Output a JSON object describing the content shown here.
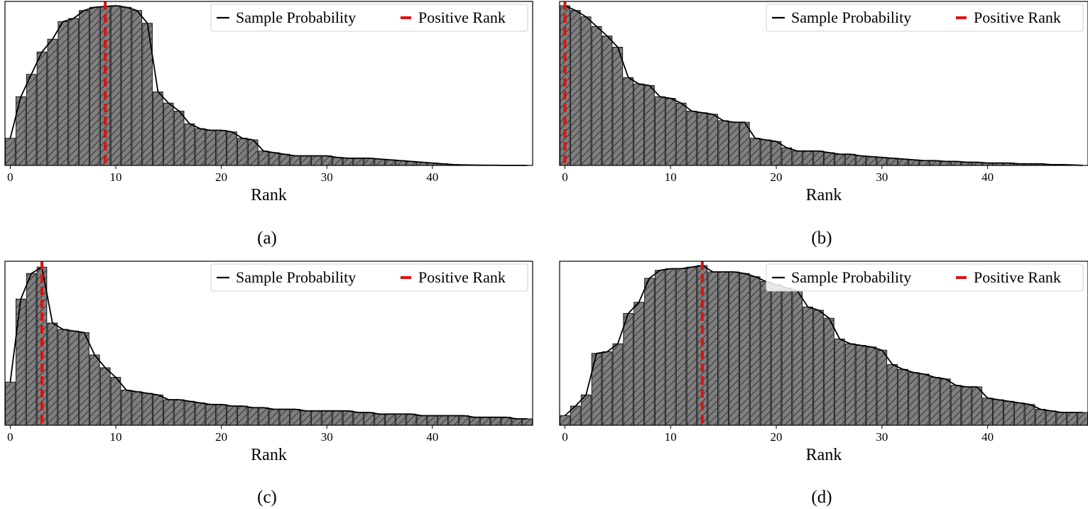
{
  "colors": {
    "bar_fill": "#7f7f7f",
    "bar_edge": "#1a1a1a",
    "hatch": "#3a3a3a",
    "line": "#000000",
    "positive_rank": "#e01010"
  },
  "chart_data": [
    {
      "type": "bar",
      "caption": "(a)",
      "xlabel": "Rank",
      "ylabel": "",
      "xlim": [
        0,
        49
      ],
      "ylim": [
        0,
        1
      ],
      "xticks": [
        0,
        10,
        20,
        30,
        40
      ],
      "grid": false,
      "legend_position": "top-right",
      "legend": [
        "Sample Probability",
        "Positive Rank"
      ],
      "positive_rank": 9,
      "series": [
        {
          "x": [
            0,
            1,
            2,
            3,
            4,
            5,
            6,
            7,
            8,
            9,
            10,
            11,
            12,
            13,
            14,
            15,
            16,
            17,
            18,
            19,
            20,
            21,
            22,
            23,
            24,
            25,
            26,
            27,
            28,
            29,
            30,
            31,
            32,
            33,
            34,
            35,
            36,
            37,
            38,
            39,
            40,
            41,
            42,
            43,
            44,
            45,
            46,
            47,
            48,
            49
          ],
          "values": [
            0.17,
            0.43,
            0.57,
            0.71,
            0.79,
            0.9,
            0.92,
            0.97,
            0.99,
            0.995,
            1.0,
            0.99,
            0.97,
            0.89,
            0.46,
            0.39,
            0.34,
            0.26,
            0.23,
            0.22,
            0.22,
            0.21,
            0.17,
            0.16,
            0.09,
            0.08,
            0.07,
            0.06,
            0.06,
            0.06,
            0.06,
            0.05,
            0.045,
            0.045,
            0.045,
            0.04,
            0.035,
            0.03,
            0.025,
            0.02,
            0.015,
            0.01,
            0.005,
            0.003,
            0.002,
            0.001,
            0.001,
            0.0,
            0.0,
            0.0
          ]
        }
      ]
    },
    {
      "type": "bar",
      "caption": "(b)",
      "xlabel": "Rank",
      "ylabel": "",
      "xlim": [
        0,
        49
      ],
      "ylim": [
        0,
        1
      ],
      "xticks": [
        0,
        10,
        20,
        30,
        40
      ],
      "grid": false,
      "legend_position": "top-right",
      "legend": [
        "Sample Probability",
        "Positive Rank"
      ],
      "positive_rank": 0,
      "series": [
        {
          "x": [
            0,
            1,
            2,
            3,
            4,
            5,
            6,
            7,
            8,
            9,
            10,
            11,
            12,
            13,
            14,
            15,
            16,
            17,
            18,
            19,
            20,
            21,
            22,
            23,
            24,
            25,
            26,
            27,
            28,
            29,
            30,
            31,
            32,
            33,
            34,
            35,
            36,
            37,
            38,
            39,
            40,
            41,
            42,
            43,
            44,
            45,
            46,
            47,
            48,
            49
          ],
          "values": [
            1.0,
            0.97,
            0.93,
            0.87,
            0.81,
            0.74,
            0.55,
            0.51,
            0.5,
            0.43,
            0.42,
            0.39,
            0.34,
            0.33,
            0.32,
            0.28,
            0.27,
            0.27,
            0.17,
            0.16,
            0.15,
            0.11,
            0.09,
            0.09,
            0.09,
            0.08,
            0.07,
            0.07,
            0.06,
            0.055,
            0.05,
            0.045,
            0.04,
            0.035,
            0.03,
            0.03,
            0.025,
            0.025,
            0.02,
            0.02,
            0.015,
            0.015,
            0.015,
            0.01,
            0.01,
            0.01,
            0.005,
            0.005,
            0.003,
            0.0
          ]
        }
      ]
    },
    {
      "type": "bar",
      "caption": "(c)",
      "xlabel": "Rank",
      "ylabel": "",
      "xlim": [
        0,
        49
      ],
      "ylim": [
        0,
        1
      ],
      "xticks": [
        0,
        10,
        20,
        30,
        40
      ],
      "grid": false,
      "legend_position": "top-right",
      "legend": [
        "Sample Probability",
        "Positive Rank"
      ],
      "positive_rank": 3,
      "series": [
        {
          "x": [
            0,
            1,
            2,
            3,
            4,
            5,
            6,
            7,
            8,
            9,
            10,
            11,
            12,
            13,
            14,
            15,
            16,
            17,
            18,
            19,
            20,
            21,
            22,
            23,
            24,
            25,
            26,
            27,
            28,
            29,
            30,
            31,
            32,
            33,
            34,
            35,
            36,
            37,
            38,
            39,
            40,
            41,
            42,
            43,
            44,
            45,
            46,
            47,
            48,
            49
          ],
          "values": [
            0.27,
            0.79,
            0.95,
            0.99,
            0.64,
            0.6,
            0.59,
            0.58,
            0.44,
            0.36,
            0.3,
            0.22,
            0.21,
            0.2,
            0.19,
            0.16,
            0.16,
            0.15,
            0.14,
            0.13,
            0.13,
            0.12,
            0.12,
            0.11,
            0.11,
            0.1,
            0.1,
            0.1,
            0.09,
            0.09,
            0.09,
            0.09,
            0.09,
            0.08,
            0.08,
            0.07,
            0.07,
            0.07,
            0.07,
            0.06,
            0.06,
            0.06,
            0.06,
            0.06,
            0.05,
            0.05,
            0.05,
            0.05,
            0.04,
            0.04
          ]
        }
      ]
    },
    {
      "type": "bar",
      "caption": "(d)",
      "xlabel": "Rank",
      "ylabel": "",
      "xlim": [
        0,
        49
      ],
      "ylim": [
        0,
        1
      ],
      "xticks": [
        0,
        10,
        20,
        30,
        40
      ],
      "grid": false,
      "legend_position": "top-right",
      "legend": [
        "Sample Probability",
        "Positive Rank"
      ],
      "positive_rank": 13,
      "series": [
        {
          "x": [
            0,
            1,
            2,
            3,
            4,
            5,
            6,
            7,
            8,
            9,
            10,
            11,
            12,
            13,
            14,
            15,
            16,
            17,
            18,
            19,
            20,
            21,
            22,
            23,
            24,
            25,
            26,
            27,
            28,
            29,
            30,
            31,
            32,
            33,
            34,
            35,
            36,
            37,
            38,
            39,
            40,
            41,
            42,
            43,
            44,
            45,
            46,
            47,
            48,
            49
          ],
          "values": [
            0.06,
            0.12,
            0.19,
            0.45,
            0.46,
            0.51,
            0.7,
            0.77,
            0.92,
            0.97,
            0.98,
            0.98,
            0.99,
            1.0,
            0.96,
            0.96,
            0.96,
            0.95,
            0.93,
            0.9,
            0.88,
            0.86,
            0.84,
            0.74,
            0.72,
            0.67,
            0.54,
            0.51,
            0.5,
            0.49,
            0.47,
            0.38,
            0.35,
            0.33,
            0.32,
            0.3,
            0.29,
            0.25,
            0.24,
            0.24,
            0.17,
            0.16,
            0.15,
            0.14,
            0.13,
            0.1,
            0.09,
            0.08,
            0.08,
            0.08
          ]
        }
      ]
    }
  ]
}
